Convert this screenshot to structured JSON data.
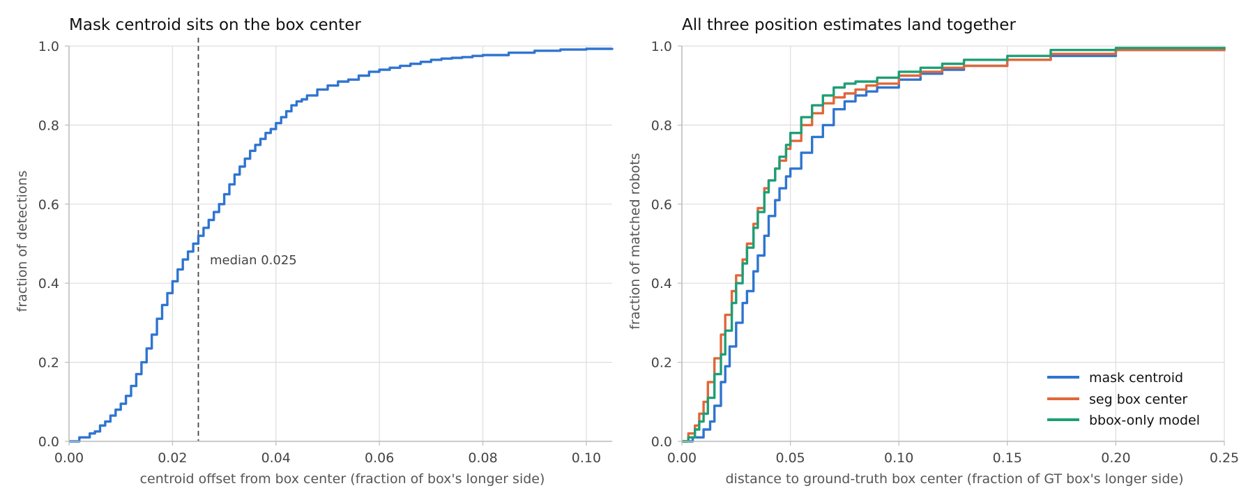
{
  "chart_data": [
    {
      "type": "line",
      "title": "Mask centroid sits on the box center",
      "xlabel": "centroid offset from box center (fraction of box's longer side)",
      "ylabel": "fraction of detections",
      "xlim": [
        0,
        0.105
      ],
      "ylim": [
        0,
        1.0
      ],
      "grid": true,
      "xticks": [
        "0.00",
        "0.02",
        "0.04",
        "0.06",
        "0.08",
        "0.10"
      ],
      "yticks": [
        "0.0",
        "0.2",
        "0.4",
        "0.6",
        "0.8",
        "1.0"
      ],
      "annotations": [
        {
          "type": "vline",
          "x": 0.025,
          "style": "dashed",
          "color": "#444444",
          "text": "median 0.025"
        }
      ],
      "series": [
        {
          "color": "#2f74d0",
          "x": [
            0,
            0.002,
            0.004,
            0.005,
            0.006,
            0.007,
            0.008,
            0.009,
            0.01,
            0.011,
            0.012,
            0.013,
            0.014,
            0.015,
            0.016,
            0.017,
            0.018,
            0.019,
            0.02,
            0.021,
            0.022,
            0.023,
            0.024,
            0.025,
            0.026,
            0.027,
            0.028,
            0.029,
            0.03,
            0.031,
            0.032,
            0.033,
            0.034,
            0.035,
            0.036,
            0.037,
            0.038,
            0.039,
            0.04,
            0.041,
            0.042,
            0.043,
            0.044,
            0.045,
            0.046,
            0.048,
            0.05,
            0.052,
            0.054,
            0.056,
            0.058,
            0.06,
            0.062,
            0.064,
            0.066,
            0.068,
            0.07,
            0.072,
            0.074,
            0.076,
            0.078,
            0.08,
            0.085,
            0.09,
            0.095,
            0.1,
            0.105
          ],
          "y": [
            0,
            0.01,
            0.02,
            0.025,
            0.04,
            0.05,
            0.065,
            0.08,
            0.095,
            0.115,
            0.14,
            0.17,
            0.2,
            0.235,
            0.27,
            0.31,
            0.345,
            0.375,
            0.405,
            0.435,
            0.46,
            0.48,
            0.5,
            0.52,
            0.54,
            0.56,
            0.58,
            0.6,
            0.625,
            0.65,
            0.675,
            0.695,
            0.715,
            0.735,
            0.75,
            0.765,
            0.78,
            0.79,
            0.805,
            0.82,
            0.835,
            0.85,
            0.86,
            0.865,
            0.875,
            0.89,
            0.9,
            0.91,
            0.915,
            0.925,
            0.935,
            0.94,
            0.945,
            0.95,
            0.955,
            0.96,
            0.965,
            0.968,
            0.97,
            0.972,
            0.975,
            0.977,
            0.983,
            0.988,
            0.991,
            0.993,
            0.995
          ]
        }
      ]
    },
    {
      "type": "line",
      "title": "All three position estimates land together",
      "xlabel": "distance to ground-truth box center (fraction of GT box's longer side)",
      "ylabel": "fraction of matched robots",
      "xlim": [
        0,
        0.25
      ],
      "ylim": [
        0,
        1.0
      ],
      "grid": true,
      "legend_position": "bottom-right",
      "xticks": [
        "0.00",
        "0.05",
        "0.10",
        "0.15",
        "0.20",
        "0.25"
      ],
      "yticks": [
        "0.0",
        "0.2",
        "0.4",
        "0.6",
        "0.8",
        "1.0"
      ],
      "series": [
        {
          "name": "mask centroid",
          "color": "#2f74d0",
          "x": [
            0,
            0.005,
            0.01,
            0.013,
            0.015,
            0.018,
            0.02,
            0.022,
            0.025,
            0.028,
            0.03,
            0.033,
            0.035,
            0.038,
            0.04,
            0.043,
            0.045,
            0.048,
            0.05,
            0.055,
            0.06,
            0.065,
            0.07,
            0.075,
            0.08,
            0.085,
            0.09,
            0.1,
            0.11,
            0.12,
            0.13,
            0.15,
            0.17,
            0.2,
            0.25
          ],
          "y": [
            0,
            0.01,
            0.03,
            0.05,
            0.09,
            0.15,
            0.19,
            0.24,
            0.3,
            0.35,
            0.38,
            0.43,
            0.47,
            0.52,
            0.57,
            0.61,
            0.64,
            0.67,
            0.69,
            0.73,
            0.77,
            0.8,
            0.84,
            0.86,
            0.875,
            0.885,
            0.895,
            0.915,
            0.93,
            0.94,
            0.95,
            0.965,
            0.975,
            0.99,
            0.995
          ]
        },
        {
          "name": "seg box center",
          "color": "#e0673a",
          "x": [
            0,
            0.003,
            0.006,
            0.008,
            0.01,
            0.012,
            0.015,
            0.018,
            0.02,
            0.023,
            0.025,
            0.028,
            0.03,
            0.033,
            0.035,
            0.038,
            0.04,
            0.043,
            0.045,
            0.048,
            0.05,
            0.055,
            0.06,
            0.065,
            0.07,
            0.075,
            0.08,
            0.085,
            0.09,
            0.1,
            0.11,
            0.12,
            0.13,
            0.15,
            0.17,
            0.2,
            0.25
          ],
          "y": [
            0,
            0.02,
            0.04,
            0.07,
            0.1,
            0.15,
            0.21,
            0.27,
            0.32,
            0.38,
            0.42,
            0.46,
            0.5,
            0.55,
            0.59,
            0.64,
            0.66,
            0.69,
            0.71,
            0.74,
            0.76,
            0.8,
            0.83,
            0.855,
            0.87,
            0.88,
            0.89,
            0.9,
            0.905,
            0.925,
            0.935,
            0.945,
            0.95,
            0.965,
            0.98,
            0.99,
            0.995
          ]
        },
        {
          "name": "bbox-only model",
          "color": "#1e9e76",
          "x": [
            0,
            0.003,
            0.006,
            0.008,
            0.01,
            0.012,
            0.015,
            0.018,
            0.02,
            0.023,
            0.025,
            0.028,
            0.03,
            0.033,
            0.035,
            0.038,
            0.04,
            0.043,
            0.045,
            0.048,
            0.05,
            0.055,
            0.06,
            0.065,
            0.07,
            0.075,
            0.08,
            0.09,
            0.1,
            0.11,
            0.12,
            0.13,
            0.15,
            0.17,
            0.2,
            0.25
          ],
          "y": [
            0,
            0.01,
            0.03,
            0.05,
            0.07,
            0.11,
            0.17,
            0.22,
            0.28,
            0.35,
            0.4,
            0.45,
            0.49,
            0.54,
            0.58,
            0.63,
            0.66,
            0.69,
            0.72,
            0.75,
            0.78,
            0.82,
            0.85,
            0.875,
            0.895,
            0.905,
            0.91,
            0.92,
            0.935,
            0.945,
            0.955,
            0.965,
            0.975,
            0.99,
            0.995,
            0.998
          ]
        }
      ]
    }
  ]
}
